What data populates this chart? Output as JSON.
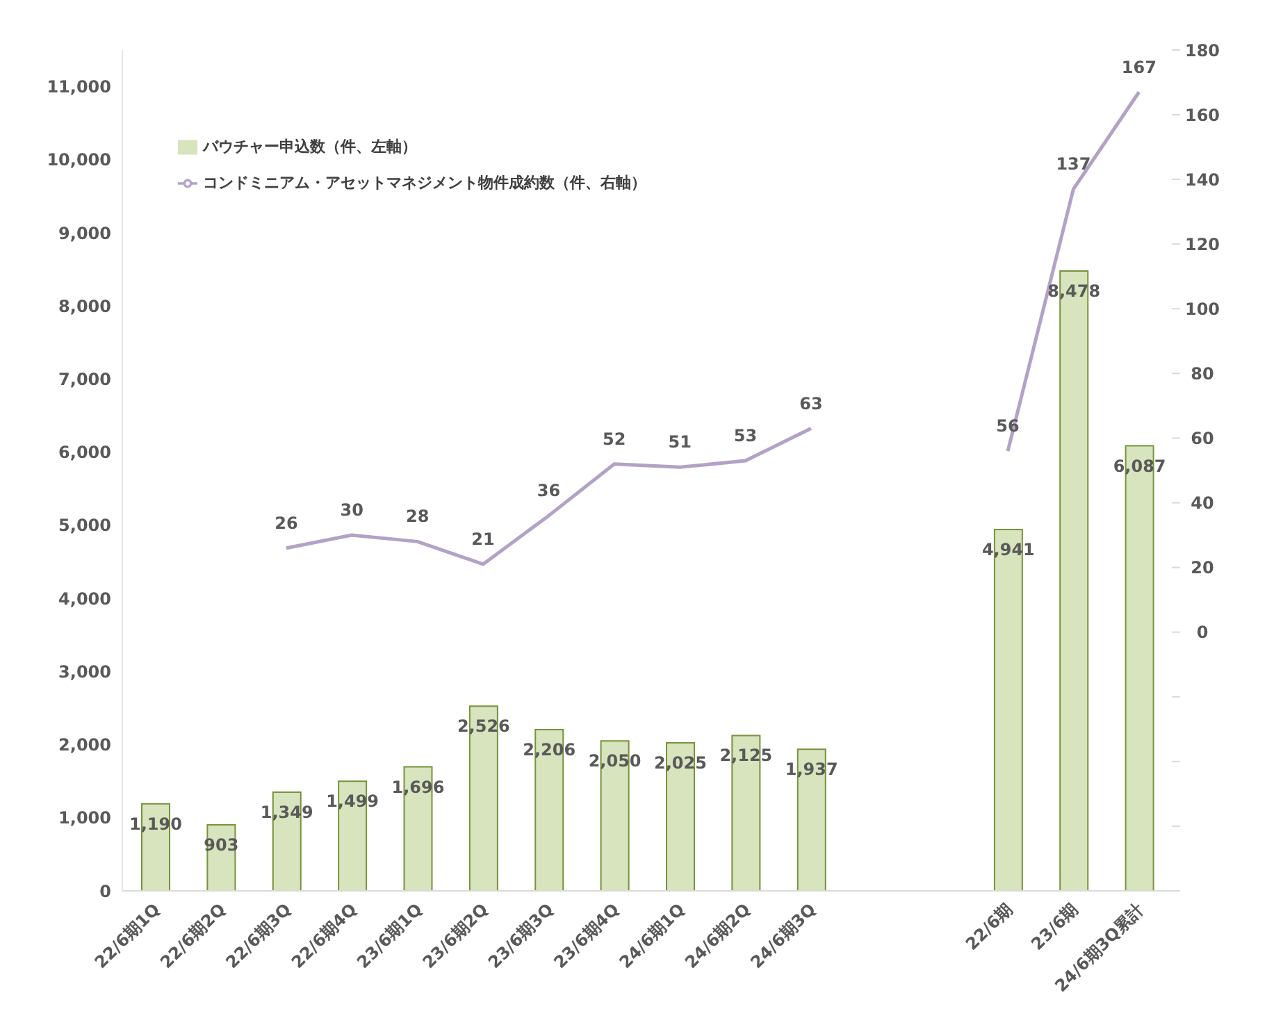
{
  "chart_data": {
    "type": "bar",
    "categories": [
      "22/6期1Q",
      "22/6期2Q",
      "22/6期3Q",
      "22/6期4Q",
      "23/6期1Q",
      "23/6期2Q",
      "23/6期3Q",
      "23/6期4Q",
      "24/6期1Q",
      "24/6期2Q",
      "24/6期3Q",
      null,
      null,
      "22/6期",
      "23/6期",
      "24/6期3Q累計"
    ],
    "series": [
      {
        "name": "バウチャー申込数（件、左軸）",
        "color": "#d7e4bd",
        "values": [
          1190,
          903,
          1349,
          1499,
          1696,
          2526,
          2206,
          2050,
          2025,
          2125,
          1937,
          null,
          null,
          4941,
          8478,
          6087
        ],
        "value_labels": [
          "1,190",
          "903",
          "1,349",
          "1,499",
          "1,696",
          "2,526",
          "2,206",
          "2,050",
          "2,025",
          "2,125",
          "1,937",
          null,
          null,
          "4,941",
          "8,478",
          "6,087"
        ]
      },
      {
        "name": "コンドミニアム・アセットマネジメント物件成約数（件、右軸）",
        "type": "line",
        "axis": "y2",
        "color": "#b3a2c7",
        "values": [
          null,
          null,
          26,
          30,
          28,
          21,
          36,
          52,
          51,
          53,
          63,
          null,
          null,
          56,
          137,
          167
        ]
      }
    ],
    "ylim": [
      0,
      11500
    ],
    "yticks": [
      0,
      {
        "value": 1000,
        "label": "1,000"
      },
      {
        "value": 2000,
        "label": "2,000"
      },
      {
        "value": 3000,
        "label": "3,000"
      },
      {
        "value": 4000,
        "label": "4,000"
      },
      {
        "value": 5000,
        "label": "5,000"
      },
      {
        "value": 6000,
        "label": "6,000"
      },
      {
        "value": 7000,
        "label": "7,000"
      },
      {
        "value": 8000,
        "label": "8,000"
      },
      {
        "value": 9000,
        "label": "9,000"
      },
      {
        "value": 10000,
        "label": "10,000"
      },
      {
        "value": 11000,
        "label": "11,000"
      }
    ],
    "y2lim": [
      -80,
      180
    ],
    "y2ticks": [
      {
        "value": -80,
        "label": null
      },
      {
        "value": -60,
        "label": null
      },
      {
        "value": -40,
        "label": null
      },
      {
        "value": -20,
        "label": null
      },
      0,
      20,
      40,
      60,
      80,
      100,
      120,
      140,
      160,
      180
    ],
    "data_labels": true,
    "legend": "top left",
    "marker": "none",
    "line_style": "solid"
  }
}
